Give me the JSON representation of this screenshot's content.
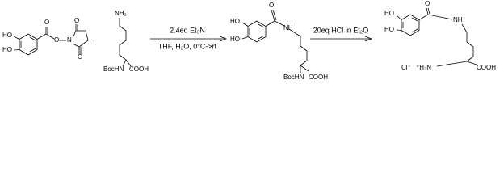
{
  "reactant_1": {
    "atoms": [
      "HO",
      "HO",
      "O",
      "O",
      "N",
      "O",
      "O"
    ]
  },
  "separator": ",",
  "reactant_2": {
    "atoms": [
      "NH₂",
      "BocHN",
      "COOH"
    ]
  },
  "step_1": {
    "above": "2.4eq Et₃N",
    "below": "THF, H₂O, 0°C->rt"
  },
  "intermediate": {
    "atoms": [
      "HO",
      "HO",
      "O",
      "NH",
      "BocHN",
      "COOH"
    ]
  },
  "step_2": {
    "above": "20eq HCl in Et₂O"
  },
  "product": {
    "atoms": [
      "HO",
      "HO",
      "O",
      "NH",
      "Cl⁻",
      "⁺H₃N",
      "COOH"
    ]
  }
}
